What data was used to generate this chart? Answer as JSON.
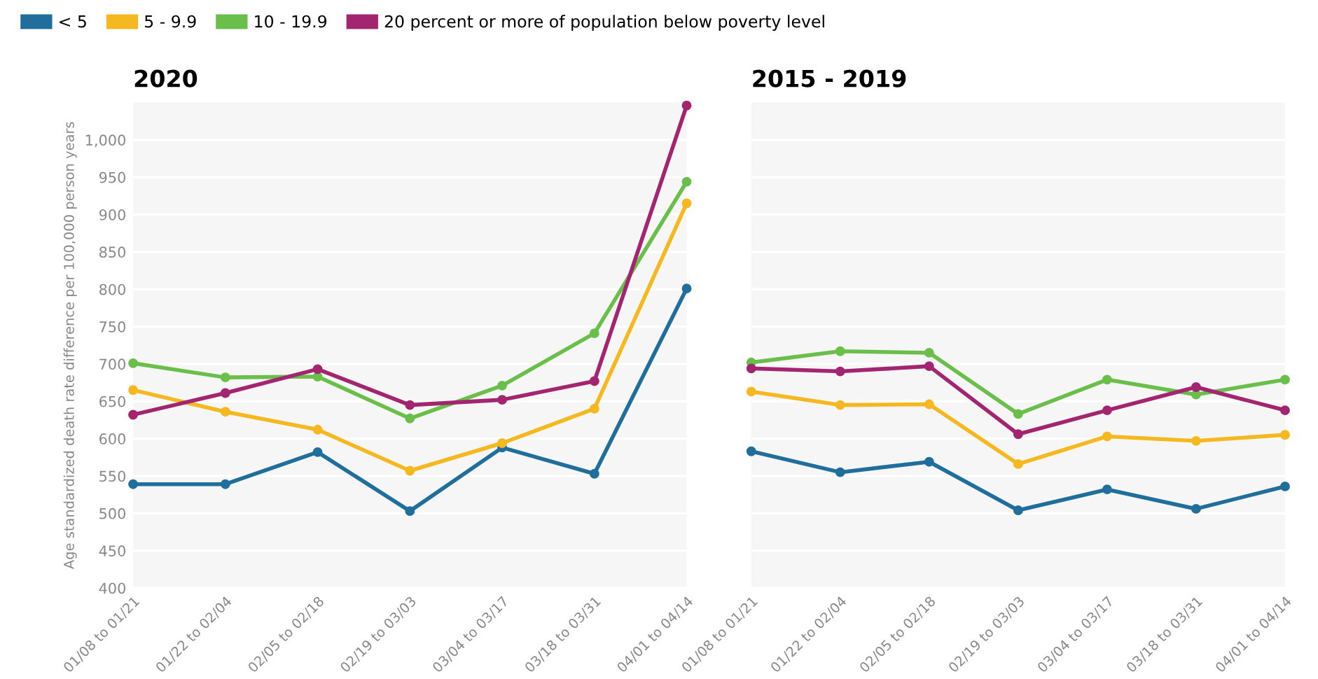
{
  "chart_data": [
    {
      "type": "line",
      "title": "2020",
      "ylabel": "Age standardized death rate difference per 100,000 person years",
      "categories": [
        "01/08 to 01/21",
        "01/22 to 02/04",
        "02/05 to 02/18",
        "02/19 to 03/03",
        "03/04 to 03/17",
        "03/18 to 03/31",
        "04/01 to 04/14"
      ],
      "series": [
        {
          "name": "< 5",
          "color": "#1f6e9c",
          "values": [
            539,
            539,
            582,
            503,
            588,
            553,
            801
          ]
        },
        {
          "name": "5 - 9.9",
          "color": "#f5b820",
          "values": [
            665,
            636,
            612,
            557,
            594,
            640,
            915
          ]
        },
        {
          "name": "10 - 19.9",
          "color": "#6abf4b",
          "values": [
            701,
            682,
            683,
            627,
            671,
            741,
            944
          ]
        },
        {
          "name": "20 percent or more of population below poverty level",
          "color": "#a3256f",
          "values": [
            632,
            661,
            693,
            645,
            652,
            677,
            1046
          ]
        }
      ],
      "ylim": [
        400,
        1050
      ],
      "yticks": [
        400,
        450,
        500,
        550,
        600,
        650,
        700,
        750,
        800,
        850,
        900,
        950,
        {
          "value": 1000,
          "label": "1,000"
        }
      ],
      "grid": "y",
      "legend": "top",
      "marker": "circle",
      "line_style": "solid"
    },
    {
      "type": "line",
      "title": "2015 - 2019",
      "categories": [
        "01/08 to 01/21",
        "01/22 to 02/04",
        "02/05 to 02/18",
        "02/19 to 03/03",
        "03/04 to 03/17",
        "03/18 to 03/31",
        "04/01 to 04/14"
      ],
      "series": [
        {
          "color": "#1f6e9c",
          "values": [
            583,
            555,
            569,
            504,
            532,
            506,
            536
          ]
        },
        {
          "color": "#f5b820",
          "values": [
            663,
            645,
            646,
            566,
            603,
            597,
            605
          ]
        },
        {
          "color": "#6abf4b",
          "values": [
            702,
            717,
            715,
            633,
            679,
            659,
            679
          ]
        },
        {
          "color": "#a3256f",
          "values": [
            694,
            690,
            697,
            606,
            638,
            669,
            638
          ]
        }
      ],
      "ylim": [
        400,
        1050
      ],
      "yticks": [
        400,
        450,
        500,
        550,
        600,
        650,
        700,
        750,
        800,
        850,
        900,
        950,
        1000
      ],
      "tick_labels": "x",
      "grid": "y",
      "marker": "circle",
      "line_style": "solid"
    }
  ]
}
